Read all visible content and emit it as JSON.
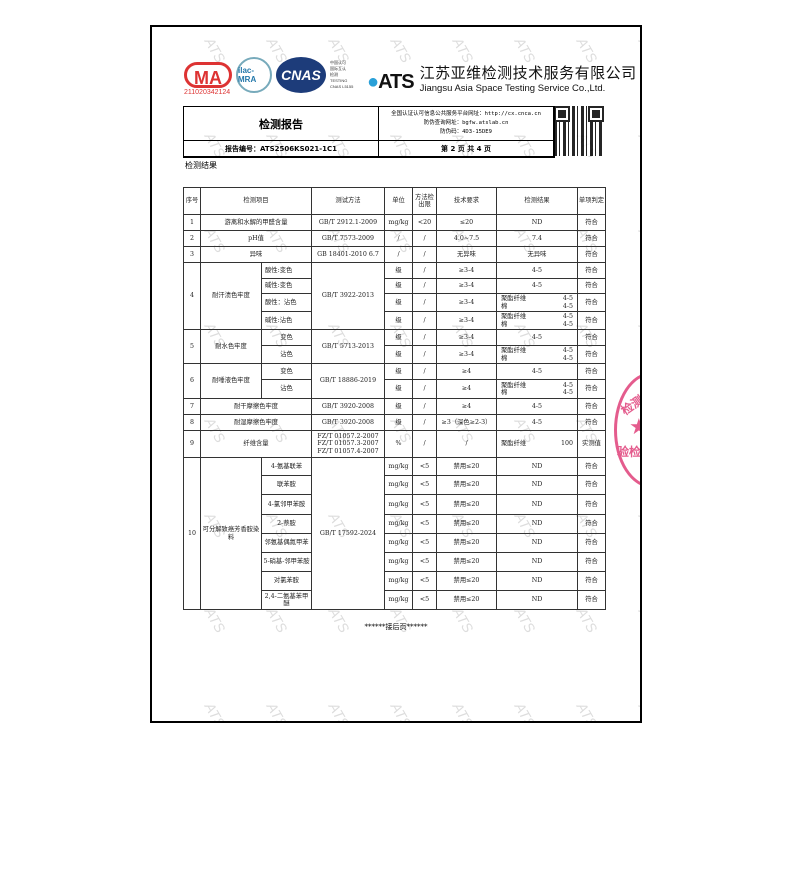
{
  "header": {
    "cma_number": "211020342124",
    "ilac": "ilac-MRA",
    "cnas": "CNAS",
    "cnas_text": [
      "中国认可",
      "国际互认",
      "检测",
      "TESTING",
      "CNAS L5155"
    ],
    "ats_logo": "ATS",
    "company_cn": "江苏亚维检测技术服务有限公司",
    "company_en": "Jiangsu Asia Space Testing Service Co.,Ltd."
  },
  "report": {
    "title": "检测报告",
    "platform": "全国认证认可信息公共服务平台网址：http://cx.cnca.cn",
    "query": "防伪查询网址：bgfw.atslab.cn",
    "code": "防伪码：4D3-15DE9",
    "number": "报告编号：ATS2506KS021-1C1",
    "page": "第 2 页 共 4 页"
  },
  "section_title": "检测结果",
  "watermark": "ATS",
  "seal": {
    "top": "检测技",
    "bottom": "验检",
    "star": "★"
  },
  "table": {
    "headers": [
      "序号",
      "检测项目",
      "测试方法",
      "单位",
      "方法检出限",
      "技术要求",
      "检测结果",
      "单项判定"
    ],
    "rows": [
      {
        "no": "1",
        "item": "游离和水解的甲醛含量",
        "method": "GB/T 2912.1-2009",
        "unit": "mg/kg",
        "limit": "<20",
        "req": "≤20",
        "result": "ND",
        "judge": "符合"
      },
      {
        "no": "2",
        "item": "pH值",
        "method": "GB/T 7573-2009",
        "unit": "/",
        "limit": "/",
        "req": "4.0~7.5",
        "result": "7.4",
        "judge": "符合"
      },
      {
        "no": "3",
        "item": "异味",
        "method": "GB 18401-2010 6.7",
        "unit": "/",
        "limit": "/",
        "req": "无异味",
        "result": "无异味",
        "judge": "符合"
      }
    ],
    "perspiration": {
      "no": "4",
      "item": "耐汗渍色牢度",
      "method": "GB/T 3922-2013",
      "subs": [
        {
          "sub": "酸性:变色",
          "unit": "级",
          "limit": "/",
          "req": "≥3-4",
          "result": "4-5",
          "judge": "符合"
        },
        {
          "sub": "碱性:变色",
          "unit": "级",
          "limit": "/",
          "req": "≥3-4",
          "result": "4-5",
          "judge": "符合"
        },
        {
          "sub": "酸性：沾色",
          "unit": "级",
          "limit": "/",
          "req": "≥3-4",
          "r1": "聚酯纤维",
          "v1": "4-5",
          "r2": "棉",
          "v2": "4-5",
          "judge": "符合"
        },
        {
          "sub": "碱性:沾色",
          "unit": "级",
          "limit": "/",
          "req": "≥3-4",
          "r1": "聚酯纤维",
          "v1": "4-5",
          "r2": "棉",
          "v2": "4-5",
          "judge": "符合"
        }
      ]
    },
    "water": {
      "no": "5",
      "item": "耐水色牢度",
      "method": "GB/T 5713-2013",
      "subs": [
        {
          "sub": "变色",
          "unit": "级",
          "limit": "/",
          "req": "≥3-4",
          "result": "4-5",
          "judge": "符合"
        },
        {
          "sub": "沾色",
          "unit": "级",
          "limit": "/",
          "req": "≥3-4",
          "r1": "聚酯纤维",
          "v1": "4-5",
          "r2": "棉",
          "v2": "4-5",
          "judge": "符合"
        }
      ]
    },
    "saliva": {
      "no": "6",
      "item": "耐唾液色牢度",
      "method": "GB/T  18886-2019",
      "subs": [
        {
          "sub": "变色",
          "unit": "级",
          "limit": "/",
          "req": "≥4",
          "result": "4-5",
          "judge": "符合"
        },
        {
          "sub": "沾色",
          "unit": "级",
          "limit": "/",
          "req": "≥4",
          "r1": "聚酯纤维",
          "v1": "4-5",
          "r2": "棉",
          "v2": "4-5",
          "judge": "符合"
        }
      ]
    },
    "rows2": [
      {
        "no": "7",
        "item": "耐干摩擦色牢度",
        "method": "GB/T 3920-2008",
        "unit": "级",
        "limit": "/",
        "req": "≥4",
        "result": "4-5",
        "judge": "符合"
      },
      {
        "no": "8",
        "item": "耐湿摩擦色牢度",
        "method": "GB/T 3920-2008",
        "unit": "级",
        "limit": "/",
        "req": "≥3（深色≥2-3）",
        "result": "4-5",
        "judge": "符合"
      }
    ],
    "fiber": {
      "no": "9",
      "item": "纤维含量",
      "methods": [
        "FZ/T 01057.2-2007",
        "FZ/T 01057.3-2007",
        "FZ/T 01057.4-2007"
      ],
      "unit": "%",
      "limit": "/",
      "req": "/",
      "r1": "聚酯纤维",
      "v1": "100",
      "judge": "实测值"
    },
    "amine": {
      "no": "10",
      "item": "可分解致癌芳香胺染料",
      "method": "GB/T 17592-2024",
      "subs": [
        {
          "sub": "4-氨基联苯",
          "unit": "mg/kg",
          "limit": "<5",
          "req": "禁用≤20",
          "result": "ND",
          "judge": "符合"
        },
        {
          "sub": "联苯胺",
          "unit": "mg/kg",
          "limit": "<5",
          "req": "禁用≤20",
          "result": "ND",
          "judge": "符合"
        },
        {
          "sub": "4-氯邻甲苯胺",
          "unit": "mg/kg",
          "limit": "<5",
          "req": "禁用≤20",
          "result": "ND",
          "judge": "符合"
        },
        {
          "sub": "2-萘胺",
          "unit": "mg/kg",
          "limit": "<5",
          "req": "禁用≤20",
          "result": "ND",
          "judge": "符合"
        },
        {
          "sub": "邻氨基偶氮甲苯",
          "unit": "mg/kg",
          "limit": "<5",
          "req": "禁用≤20",
          "result": "ND",
          "judge": "符合"
        },
        {
          "sub": "5-硝基-邻甲苯胺",
          "unit": "mg/kg",
          "limit": "<5",
          "req": "禁用≤20",
          "result": "ND",
          "judge": "符合"
        },
        {
          "sub": "对氯苯胺",
          "unit": "mg/kg",
          "limit": "<5",
          "req": "禁用≤20",
          "result": "ND",
          "judge": "符合"
        },
        {
          "sub": "2,4-二氨基苯甲醚",
          "unit": "mg/kg",
          "limit": "<5",
          "req": "禁用≤20",
          "result": "ND",
          "judge": "符合"
        }
      ]
    }
  },
  "footer": "******接后页******"
}
